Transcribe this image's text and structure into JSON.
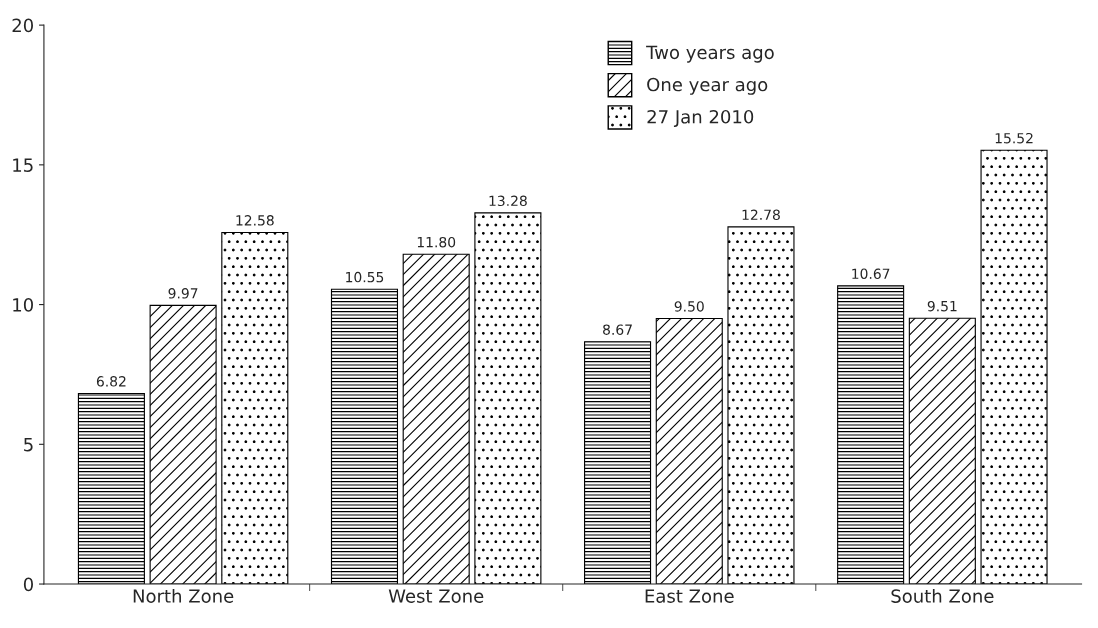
{
  "chart_data": {
    "type": "bar",
    "categories": [
      "North Zone",
      "West Zone",
      "East Zone",
      "South Zone"
    ],
    "series": [
      {
        "name": "Two years ago",
        "color": "#000000",
        "values": [
          6.82,
          10.55,
          8.67,
          10.67
        ],
        "value_labels": [
          "6.82",
          "10.55",
          "8.67",
          "10.67"
        ]
      },
      {
        "name": "One year ago",
        "color": "#000000",
        "values": [
          9.97,
          11.8,
          9.5,
          9.51
        ],
        "value_labels": [
          "9.97",
          "11.80",
          "9.50",
          "9.51"
        ]
      },
      {
        "name": "27 Jan 2010",
        "color": "#000000",
        "values": [
          12.58,
          13.28,
          12.78,
          15.52
        ],
        "value_labels": [
          "12.58",
          "13.28",
          "12.78",
          "15.52"
        ]
      }
    ],
    "ylim": [
      0,
      20
    ],
    "yticks": [
      0,
      5,
      10,
      15,
      20
    ],
    "grid": false,
    "legend": "top right"
  }
}
